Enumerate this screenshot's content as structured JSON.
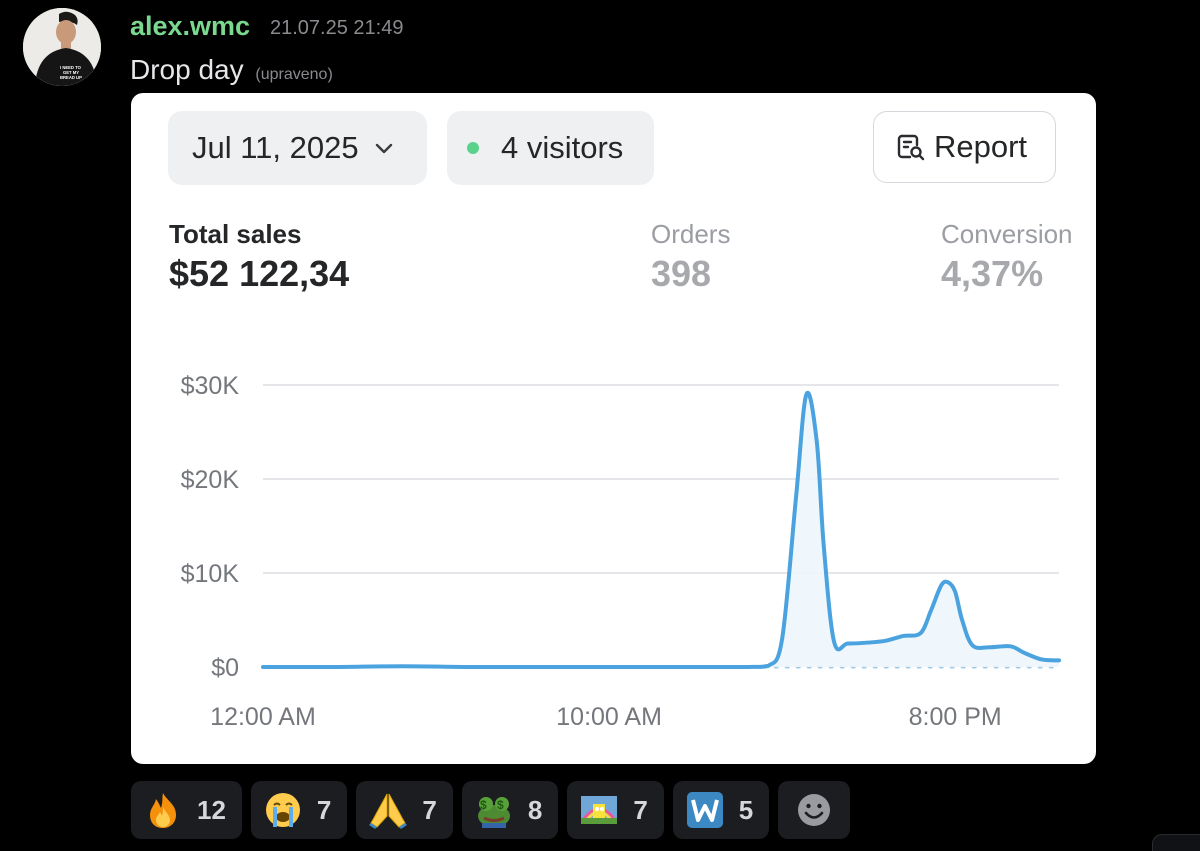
{
  "message": {
    "username": "alex.wmc",
    "timestamp": "21.07.25 21:49",
    "text": "Drop day",
    "edited_label": "(upraveno)",
    "avatar_shirt_text": "I NEED TO GET MY BREAD UP"
  },
  "dashboard": {
    "date_label": "Jul 11, 2025",
    "visitors_label": "4 visitors",
    "report_label": "Report",
    "metrics": {
      "total_sales_label": "Total sales",
      "total_sales_value": "$52 122,34",
      "orders_label": "Orders",
      "orders_value": "398",
      "conversion_label": "Conversion",
      "conversion_value": "4,37%"
    }
  },
  "chart_data": {
    "type": "area",
    "ytick_labels": [
      "$0",
      "$10K",
      "$20K",
      "$30K"
    ],
    "ytick_values": [
      0,
      10000,
      20000,
      30000
    ],
    "xtick_labels": [
      "12:00 AM",
      "10:00 AM",
      "8:00 PM"
    ],
    "xtick_hours": [
      0,
      10,
      20
    ],
    "ylim": [
      0,
      30000
    ],
    "x_hours": [
      0,
      2,
      4,
      6,
      8,
      10,
      12,
      14,
      14.6,
      15.0,
      15.4,
      15.7,
      16.0,
      16.2,
      16.5,
      16.9,
      17.5,
      18.0,
      18.5,
      19.0,
      19.3,
      19.6,
      19.8,
      20.0,
      20.2,
      20.5,
      21.0,
      21.6,
      22.0,
      22.5,
      23.0
    ],
    "y_values": [
      0,
      0,
      80,
      0,
      0,
      0,
      0,
      0,
      120,
      3000,
      18000,
      29000,
      24000,
      13000,
      2700,
      2500,
      2600,
      2800,
      3300,
      3600,
      6000,
      8700,
      9000,
      8000,
      5000,
      2300,
      2100,
      2200,
      1500,
      800,
      700
    ],
    "grid": true,
    "line_color": "#4aa3df",
    "baseline_color": "#9fc9e6"
  },
  "reactions": [
    {
      "emoji_name": "fire-emoji",
      "count": "12"
    },
    {
      "emoji_name": "crying-face-emoji",
      "count": "7"
    },
    {
      "emoji_name": "folded-hands-emoji",
      "count": "7"
    },
    {
      "emoji_name": "money-frog-emoji",
      "count": "8"
    },
    {
      "emoji_name": "sponge-rainbow-emoji",
      "count": "7"
    },
    {
      "emoji_name": "letter-w-emoji",
      "count": "5"
    }
  ]
}
